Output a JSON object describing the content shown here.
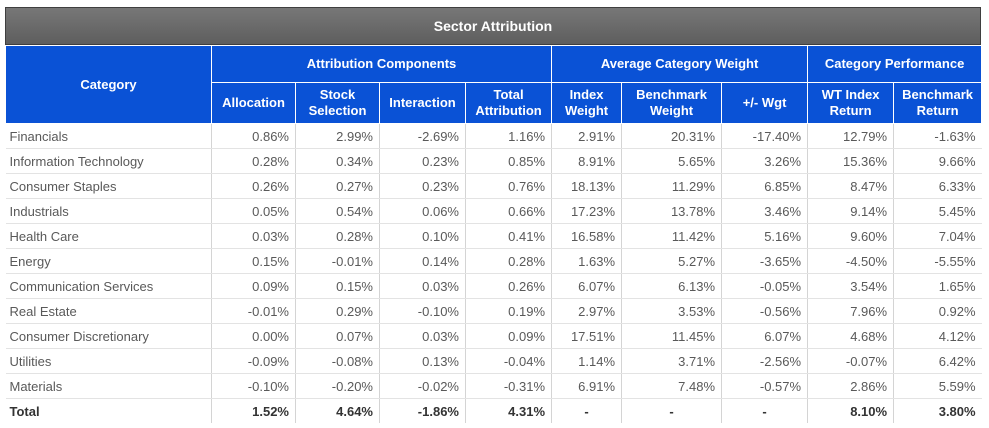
{
  "title": "Sector Attribution",
  "headers": {
    "category": "Category",
    "groups": [
      "Attribution Components",
      "Average Category Weight",
      "Category Performance"
    ],
    "columns": [
      [
        "Allocation"
      ],
      [
        "Stock",
        "Selection"
      ],
      [
        "Interaction"
      ],
      [
        "Total",
        "Attribution"
      ],
      [
        "Index",
        "Weight"
      ],
      [
        "Benchmark",
        "Weight"
      ],
      [
        "+/- Wgt"
      ],
      [
        "WT Index",
        "Return"
      ],
      [
        "Benchmark",
        "Return"
      ]
    ]
  },
  "rows": [
    {
      "category": "Financials",
      "values": [
        "0.86%",
        "2.99%",
        "-2.69%",
        "1.16%",
        "2.91%",
        "20.31%",
        "-17.40%",
        "12.79%",
        "-1.63%"
      ]
    },
    {
      "category": "Information Technology",
      "values": [
        "0.28%",
        "0.34%",
        "0.23%",
        "0.85%",
        "8.91%",
        "5.65%",
        "3.26%",
        "15.36%",
        "9.66%"
      ]
    },
    {
      "category": "Consumer Staples",
      "values": [
        "0.26%",
        "0.27%",
        "0.23%",
        "0.76%",
        "18.13%",
        "11.29%",
        "6.85%",
        "8.47%",
        "6.33%"
      ]
    },
    {
      "category": "Industrials",
      "values": [
        "0.05%",
        "0.54%",
        "0.06%",
        "0.66%",
        "17.23%",
        "13.78%",
        "3.46%",
        "9.14%",
        "5.45%"
      ]
    },
    {
      "category": "Health Care",
      "values": [
        "0.03%",
        "0.28%",
        "0.10%",
        "0.41%",
        "16.58%",
        "11.42%",
        "5.16%",
        "9.60%",
        "7.04%"
      ]
    },
    {
      "category": "Energy",
      "values": [
        "0.15%",
        "-0.01%",
        "0.14%",
        "0.28%",
        "1.63%",
        "5.27%",
        "-3.65%",
        "-4.50%",
        "-5.55%"
      ]
    },
    {
      "category": "Communication Services",
      "values": [
        "0.09%",
        "0.15%",
        "0.03%",
        "0.26%",
        "6.07%",
        "6.13%",
        "-0.05%",
        "3.54%",
        "1.65%"
      ]
    },
    {
      "category": "Real Estate",
      "values": [
        "-0.01%",
        "0.29%",
        "-0.10%",
        "0.19%",
        "2.97%",
        "3.53%",
        "-0.56%",
        "7.96%",
        "0.92%"
      ]
    },
    {
      "category": "Consumer Discretionary",
      "values": [
        "0.00%",
        "0.07%",
        "0.03%",
        "0.09%",
        "17.51%",
        "11.45%",
        "6.07%",
        "4.68%",
        "4.12%"
      ]
    },
    {
      "category": "Utilities",
      "values": [
        "-0.09%",
        "-0.08%",
        "0.13%",
        "-0.04%",
        "1.14%",
        "3.71%",
        "-2.56%",
        "-0.07%",
        "6.42%"
      ]
    },
    {
      "category": "Materials",
      "values": [
        "-0.10%",
        "-0.20%",
        "-0.02%",
        "-0.31%",
        "6.91%",
        "7.48%",
        "-0.57%",
        "2.86%",
        "5.59%"
      ]
    }
  ],
  "total": {
    "category": "Total",
    "values": [
      "1.52%",
      "4.64%",
      "-1.86%",
      "4.31%",
      "-",
      "-",
      "-",
      "8.10%",
      "3.80%"
    ]
  },
  "colors": {
    "header_blue": "#0a52d6",
    "title_gray": "#6b6b6b",
    "text_gray": "#595959"
  }
}
